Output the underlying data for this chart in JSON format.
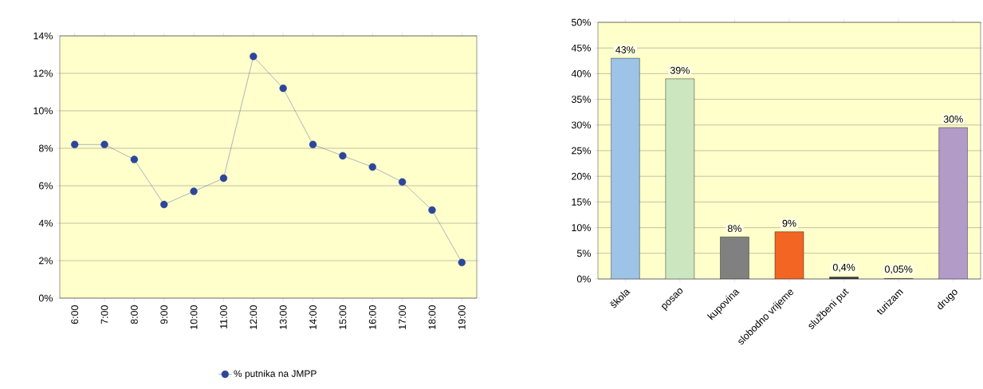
{
  "chart_data": [
    {
      "type": "line",
      "categories": [
        "6:00",
        "7:00",
        "8:00",
        "9:00",
        "10:00",
        "11:00",
        "12:00",
        "13:00",
        "14:00",
        "15:00",
        "16:00",
        "17:00",
        "18:00",
        "19:00"
      ],
      "series": [
        {
          "name": "% putnika na JMPP",
          "color": "#2e4699",
          "values": [
            8.2,
            8.2,
            7.4,
            5.0,
            5.7,
            6.4,
            12.9,
            11.2,
            8.2,
            7.6,
            7.0,
            6.2,
            4.7,
            1.9
          ]
        }
      ],
      "ylim": [
        0,
        14
      ],
      "yticks": [
        {
          "value": 0,
          "label": "0%"
        },
        {
          "value": 2,
          "label": "2%"
        },
        {
          "value": 4,
          "label": "4%"
        },
        {
          "value": 6,
          "label": "6%"
        },
        {
          "value": 8,
          "label": "8%"
        },
        {
          "value": 10,
          "label": "10%"
        },
        {
          "value": 12,
          "label": "12%"
        },
        {
          "value": 14,
          "label": "14%"
        }
      ],
      "grid": "y",
      "legend": "bottom",
      "marker": "circle",
      "line_style": "solid"
    },
    {
      "type": "bar",
      "categories": [
        "škola",
        "posao",
        "kupovina",
        "slobodno vrijeme",
        "službeni put",
        "turizam",
        "drugo"
      ],
      "values": [
        43,
        39,
        8.2,
        9.2,
        0.4,
        0.05,
        29.5
      ],
      "value_labels": [
        "43%",
        "39%",
        "8%",
        "9%",
        "0,4%",
        "0,05%",
        "30%"
      ],
      "colors": [
        "#9dc3e6",
        "#cce6c0",
        "#808080",
        "#f26522",
        "#404040",
        "#404040",
        "#b39bc8"
      ],
      "ylim": [
        0,
        50
      ],
      "yticks": [
        {
          "value": 0,
          "label": "0%"
        },
        {
          "value": 5,
          "label": "5%"
        },
        {
          "value": 10,
          "label": "10%"
        },
        {
          "value": 15,
          "label": "15%"
        },
        {
          "value": 20,
          "label": "20%"
        },
        {
          "value": 25,
          "label": "25%"
        },
        {
          "value": 30,
          "label": "30%"
        },
        {
          "value": 35,
          "label": "35%"
        },
        {
          "value": 40,
          "label": "40%"
        },
        {
          "value": 45,
          "label": "45%"
        },
        {
          "value": 50,
          "label": "50%"
        }
      ],
      "grid": "y"
    }
  ]
}
